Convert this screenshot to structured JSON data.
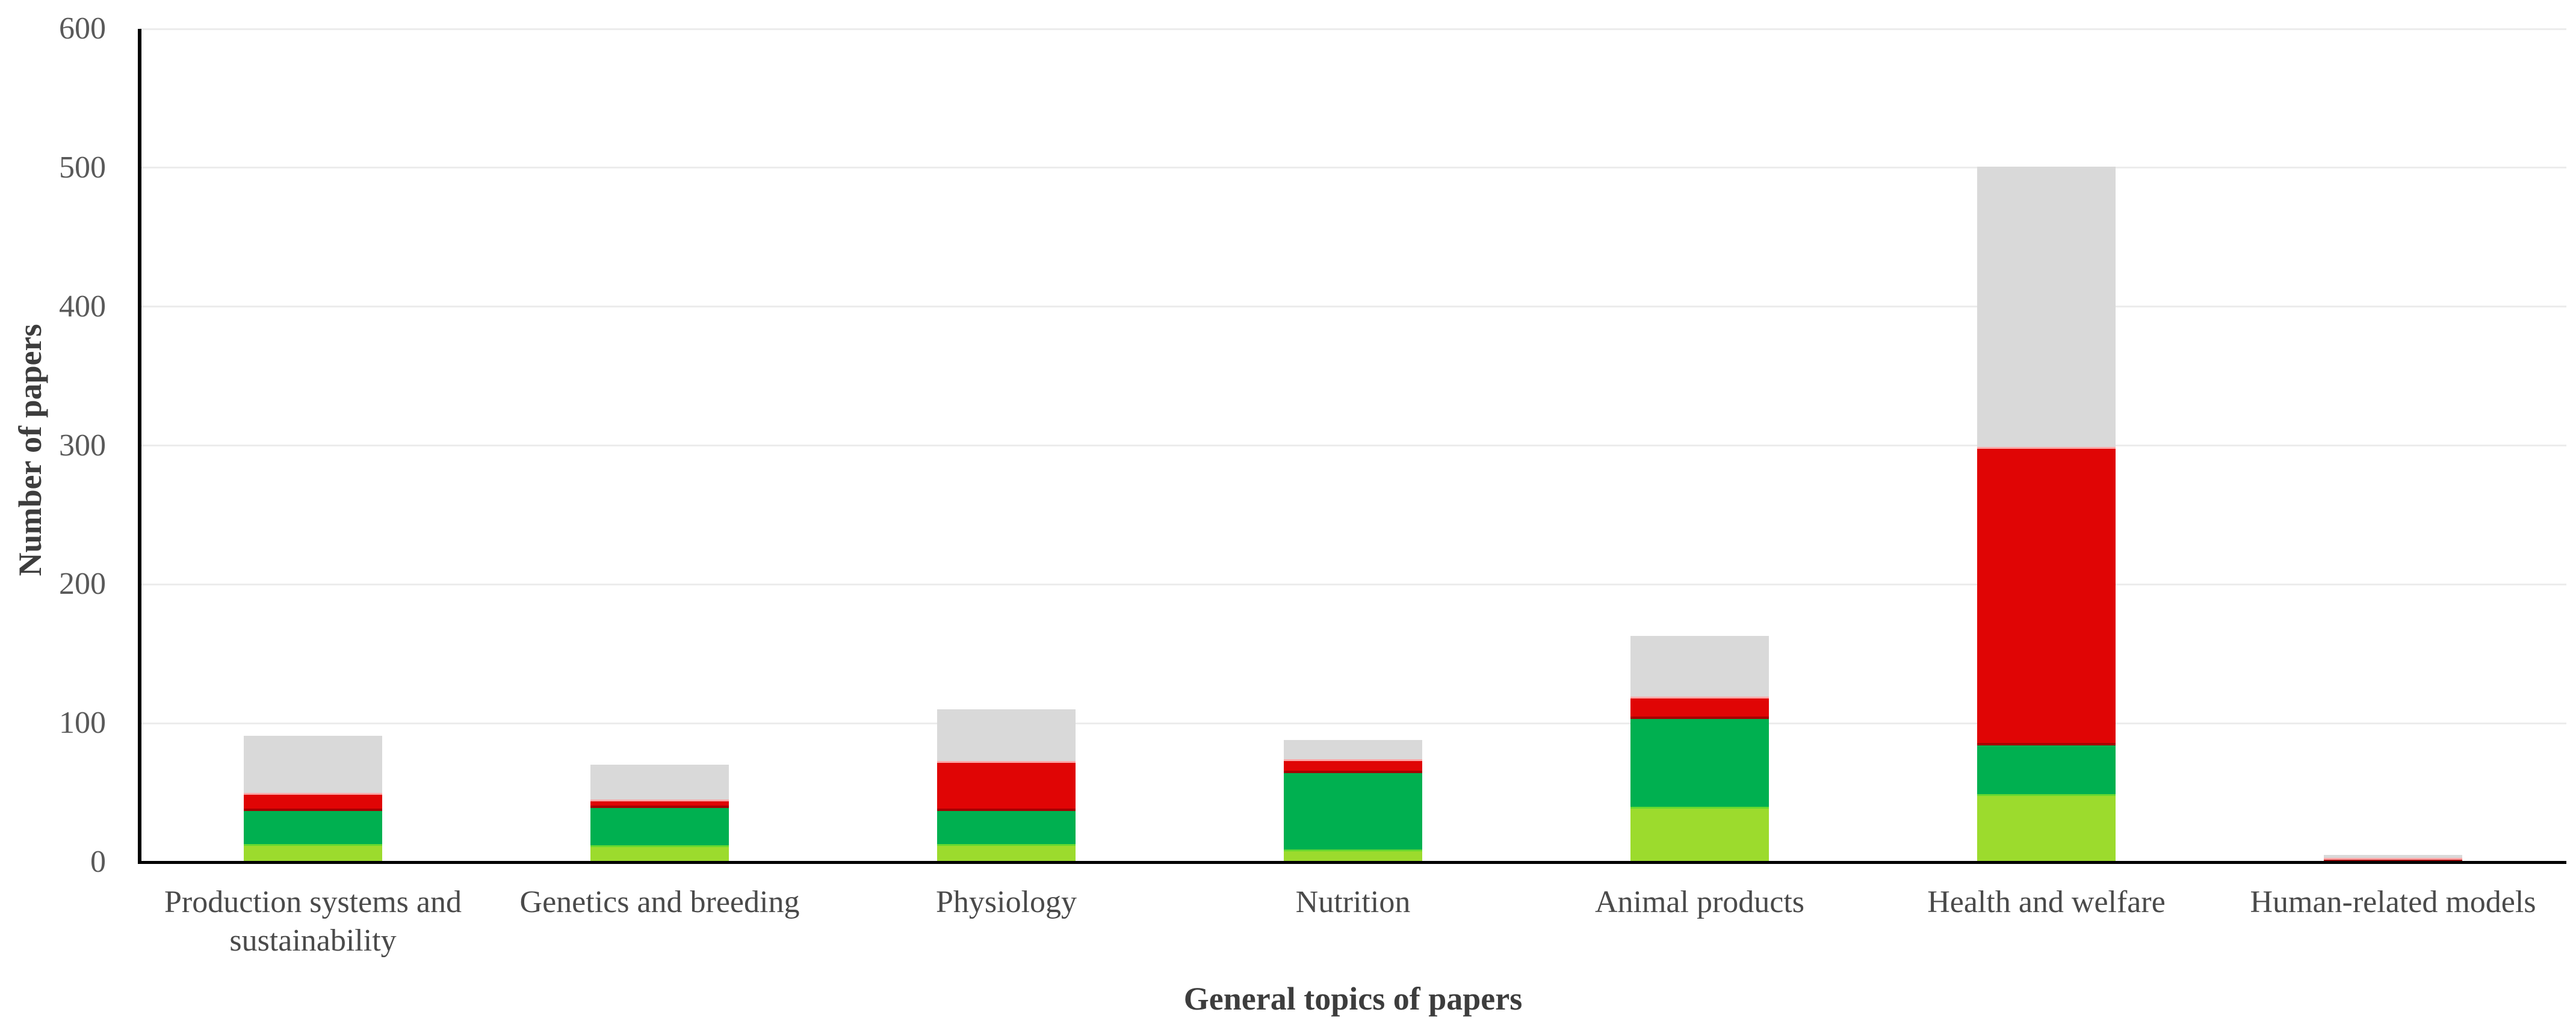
{
  "figure": {
    "background_color": "#ffffff",
    "text_color": "#595959",
    "title_color": "#3d3d3d"
  },
  "chart_data": {
    "type": "bar",
    "stacked": true,
    "orientation": "vertical",
    "title": "",
    "xlabel": "General topics of papers",
    "ylabel": "Number of papers",
    "ylim": [
      0,
      600
    ],
    "yticks": [
      0,
      100,
      200,
      300,
      400,
      500,
      600
    ],
    "grid": "horizontal",
    "gridline_color": "#ececec",
    "axis_line_color": "#000000",
    "legend": "none",
    "categories": [
      "Production systems and sustainability",
      "Genetics and breeding",
      "Physiology",
      "Nutrition",
      "Animal products",
      "Health and welfare",
      "Human-related models"
    ],
    "series": [
      {
        "name": "light-green",
        "color": "#9cdb2d",
        "values": [
          13,
          12,
          13,
          9,
          40,
          49,
          0
        ]
      },
      {
        "name": "green",
        "color": "#00b050",
        "values": [
          24,
          27,
          24,
          55,
          63,
          35,
          0
        ]
      },
      {
        "name": "red",
        "color": "#e00505",
        "values": [
          13,
          6,
          36,
          10,
          16,
          215,
          3
        ]
      },
      {
        "name": "gray",
        "color": "#d9d9d9",
        "values": [
          41,
          25,
          37,
          14,
          44,
          202,
          2
        ]
      }
    ]
  }
}
